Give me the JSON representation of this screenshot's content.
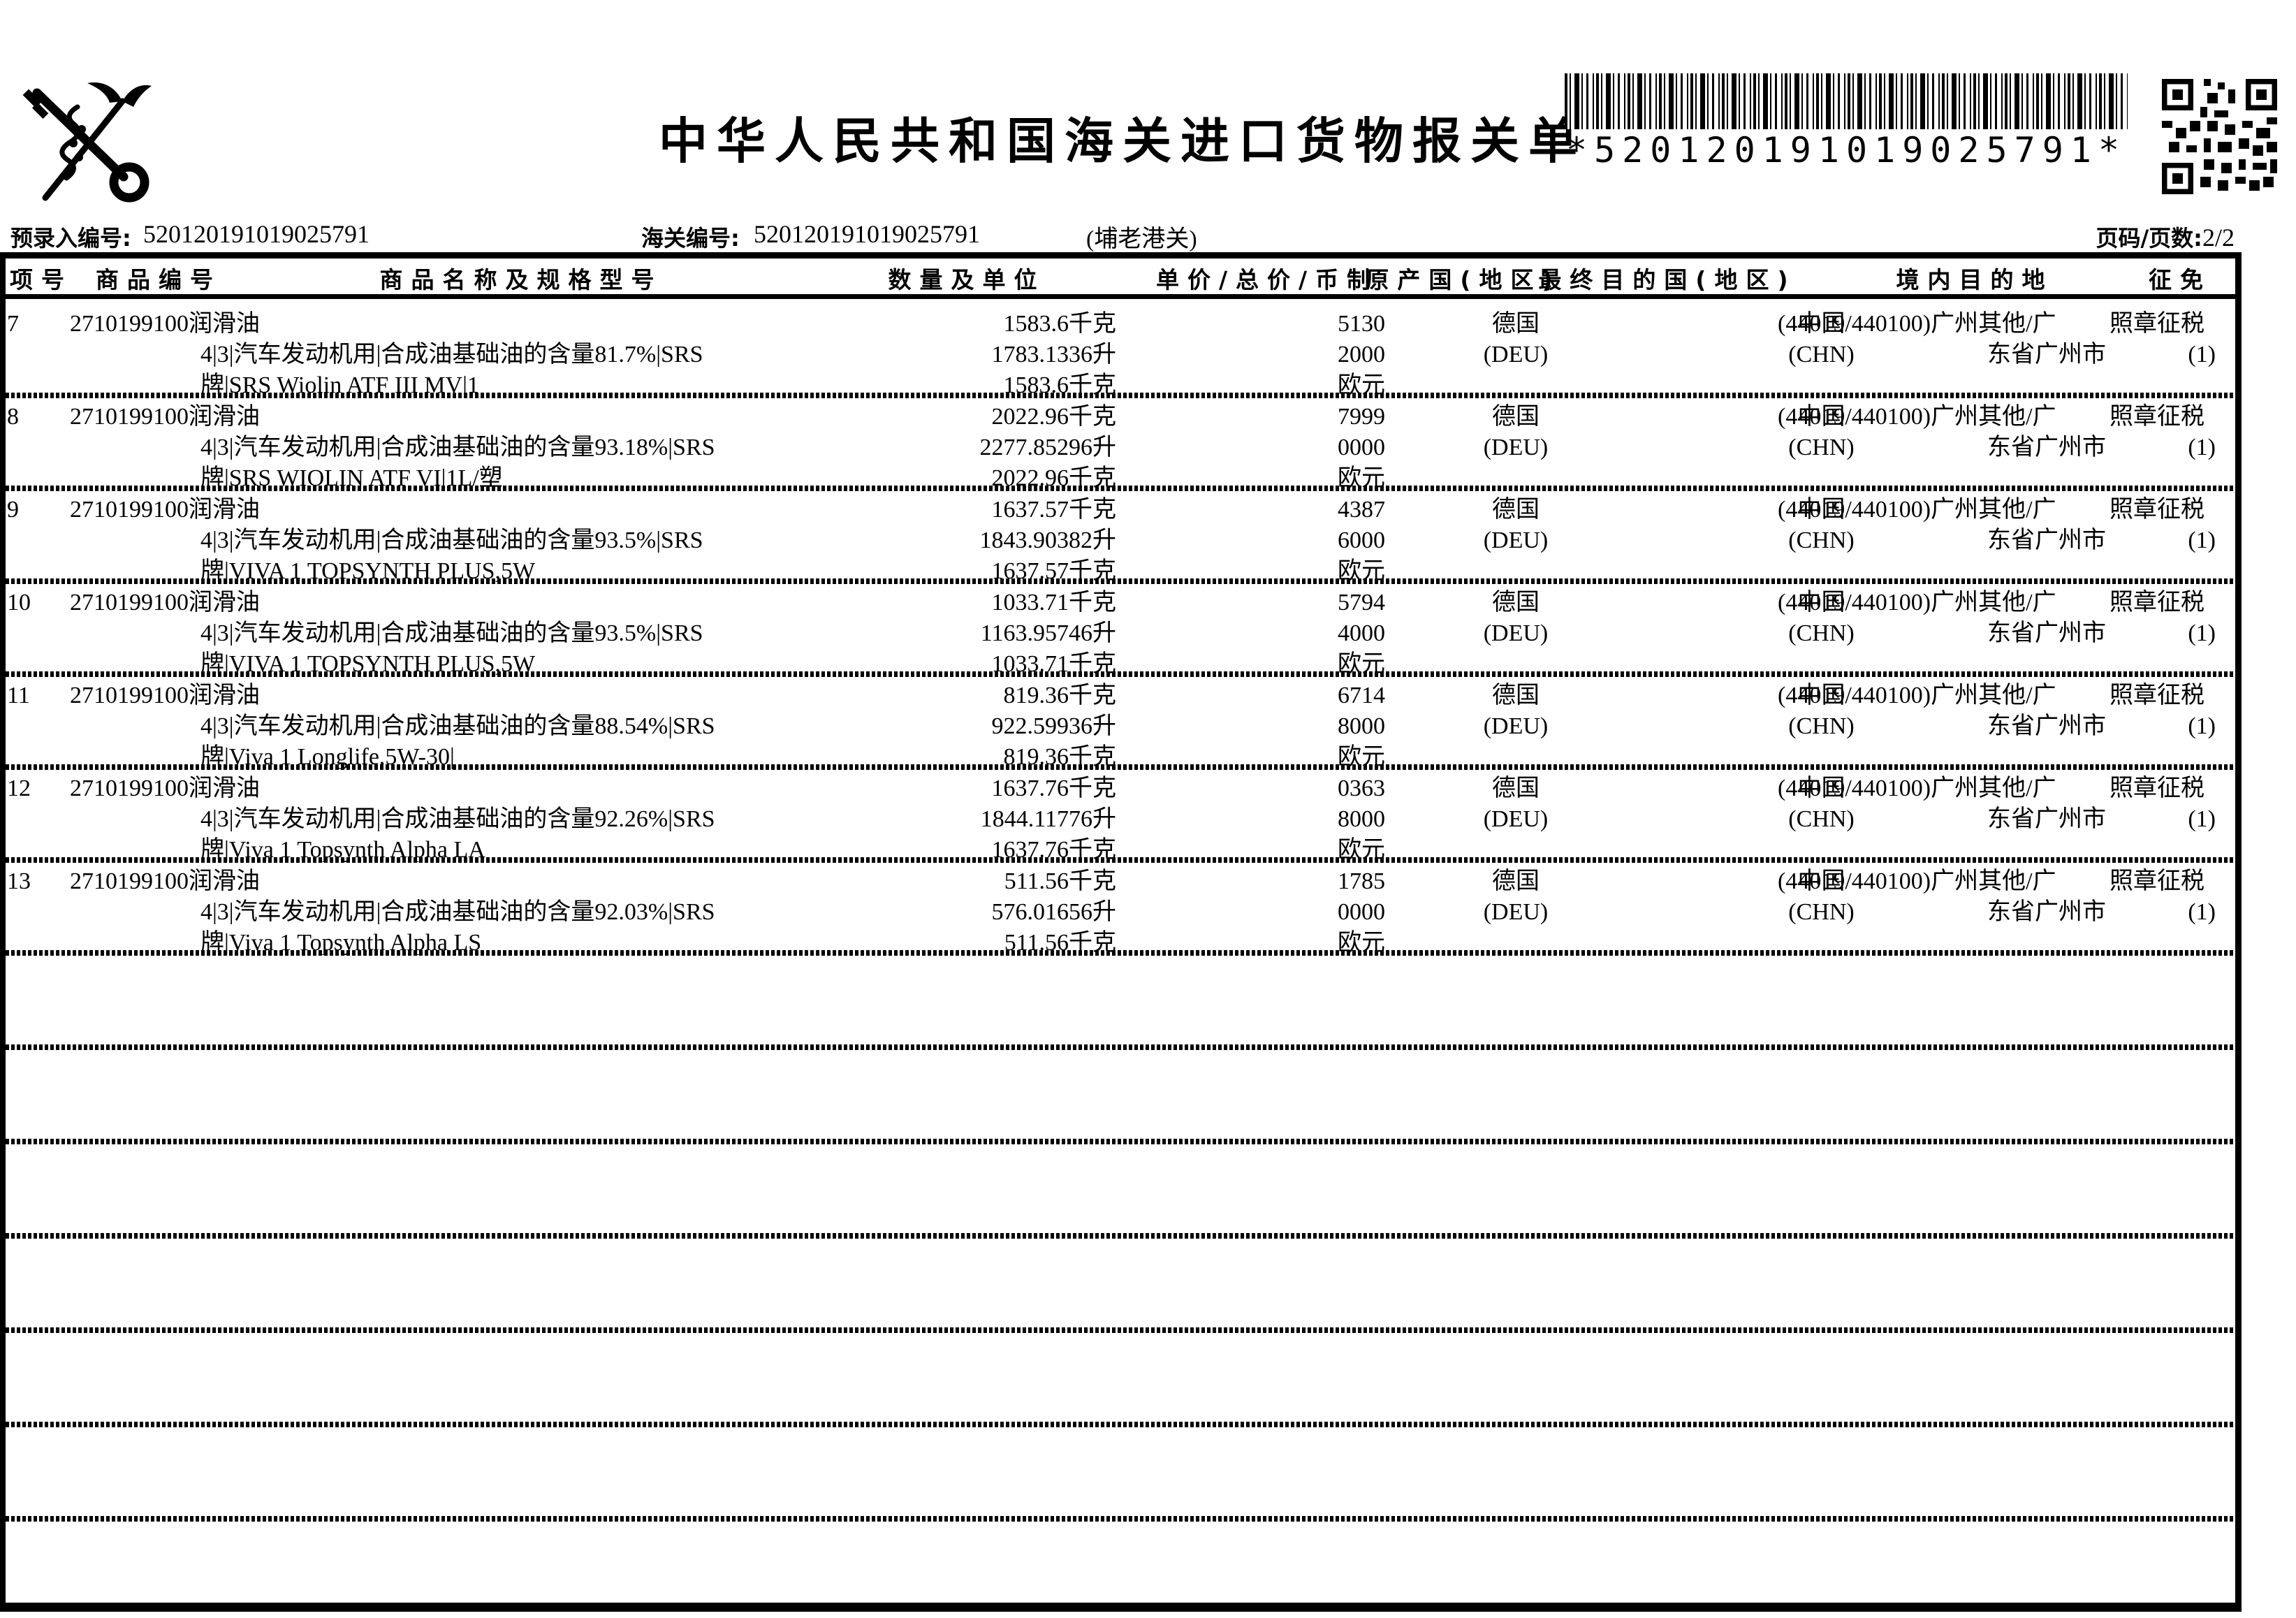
{
  "header": {
    "emblem_name": "china-customs-emblem",
    "title": "中华人民共和国海关进口货物报关单",
    "barcode_text": "*520120191019025791*",
    "pre_entry": {
      "label": "预录入编号:",
      "value": "520120191019025791"
    },
    "customs_no": {
      "label": "海关编号:",
      "value": "520120191019025791"
    },
    "port": "(埔老港关)",
    "page": {
      "label": "页码/页数:",
      "value": "2/2"
    }
  },
  "table": {
    "headers": [
      "项号",
      "商品编号",
      "商品名称及规格型号",
      "数量及单位",
      "单价/总价/币制",
      "原产国(地区)",
      "最终目的国(地区)",
      "境内目的地",
      "征免"
    ],
    "empty_rows": 6,
    "rows": [
      {
        "item": "7",
        "code": "2710199100",
        "name1": "润滑油",
        "name2": "4|3|汽车发动机用|合成油基础油的含量81.7%|SRS",
        "name3": "牌|SRS Wiolin ATF III MV|1",
        "qty1": "1583.6千克",
        "qty2": "1783.1336升",
        "qty3": "1583.6千克",
        "price1": "5130",
        "price2": "2000",
        "price3": "欧元",
        "origin1": "德国",
        "origin2": "(DEU)",
        "dest1": "中国",
        "dest2": "(CHN)",
        "domestic1": "(44019/440100)广州其他/广",
        "domestic2": "东省广州市",
        "levy1": "照章征税",
        "levy2": "(1)"
      },
      {
        "item": "8",
        "code": "2710199100",
        "name1": "润滑油",
        "name2": "4|3|汽车发动机用|合成油基础油的含量93.18%|SRS",
        "name3": "牌|SRS WIOLIN ATF VI|1L/塑",
        "qty1": "2022.96千克",
        "qty2": "2277.85296升",
        "qty3": "2022.96千克",
        "price1": "7999",
        "price2": "0000",
        "price3": "欧元",
        "origin1": "德国",
        "origin2": "(DEU)",
        "dest1": "中国",
        "dest2": "(CHN)",
        "domestic1": "(44019/440100)广州其他/广",
        "domestic2": "东省广州市",
        "levy1": "照章征税",
        "levy2": "(1)"
      },
      {
        "item": "9",
        "code": "2710199100",
        "name1": "润滑油",
        "name2": "4|3|汽车发动机用|合成油基础油的含量93.5%|SRS",
        "name3": "牌|VIVA 1 TOPSYNTH PLUS,5W",
        "qty1": "1637.57千克",
        "qty2": "1843.90382升",
        "qty3": "1637.57千克",
        "price1": "4387",
        "price2": "6000",
        "price3": "欧元",
        "origin1": "德国",
        "origin2": "(DEU)",
        "dest1": "中国",
        "dest2": "(CHN)",
        "domestic1": "(44019/440100)广州其他/广",
        "domestic2": "东省广州市",
        "levy1": "照章征税",
        "levy2": "(1)"
      },
      {
        "item": "10",
        "code": "2710199100",
        "name1": "润滑油",
        "name2": "4|3|汽车发动机用|合成油基础油的含量93.5%|SRS",
        "name3": "牌|VIVA 1 TOPSYNTH PLUS,5W",
        "qty1": "1033.71千克",
        "qty2": "1163.95746升",
        "qty3": "1033.71千克",
        "price1": "5794",
        "price2": "4000",
        "price3": "欧元",
        "origin1": "德国",
        "origin2": "(DEU)",
        "dest1": "中国",
        "dest2": "(CHN)",
        "domestic1": "(44019/440100)广州其他/广",
        "domestic2": "东省广州市",
        "levy1": "照章征税",
        "levy2": "(1)"
      },
      {
        "item": "11",
        "code": "2710199100",
        "name1": "润滑油",
        "name2": "4|3|汽车发动机用|合成油基础油的含量88.54%|SRS",
        "name3": "牌|Viva 1 Longlife,5W-30|",
        "qty1": "819.36千克",
        "qty2": "922.59936升",
        "qty3": "819.36千克",
        "price1": "6714",
        "price2": "8000",
        "price3": "欧元",
        "origin1": "德国",
        "origin2": "(DEU)",
        "dest1": "中国",
        "dest2": "(CHN)",
        "domestic1": "(44019/440100)广州其他/广",
        "domestic2": "东省广州市",
        "levy1": "照章征税",
        "levy2": "(1)"
      },
      {
        "item": "12",
        "code": "2710199100",
        "name1": "润滑油",
        "name2": "4|3|汽车发动机用|合成油基础油的含量92.26%|SRS",
        "name3": "牌|Viva 1 Topsynth Alpha LA",
        "qty1": "1637.76千克",
        "qty2": "1844.11776升",
        "qty3": "1637.76千克",
        "price1": "0363",
        "price2": "8000",
        "price3": "欧元",
        "origin1": "德国",
        "origin2": "(DEU)",
        "dest1": "中国",
        "dest2": "(CHN)",
        "domestic1": "(44019/440100)广州其他/广",
        "domestic2": "东省广州市",
        "levy1": "照章征税",
        "levy2": "(1)"
      },
      {
        "item": "13",
        "code": "2710199100",
        "name1": "润滑油",
        "name2": "4|3|汽车发动机用|合成油基础油的含量92.03%|SRS",
        "name3": "牌|Viva 1 Topsynth Alpha LS",
        "qty1": "511.56千克",
        "qty2": "576.01656升",
        "qty3": "511.56千克",
        "price1": "1785",
        "price2": "0000",
        "price3": "欧元",
        "origin1": "德国",
        "origin2": "(DEU)",
        "dest1": "中国",
        "dest2": "(CHN)",
        "domestic1": "(44019/440100)广州其他/广",
        "domestic2": "东省广州市",
        "levy1": "照章征税",
        "levy2": "(1)"
      }
    ]
  }
}
